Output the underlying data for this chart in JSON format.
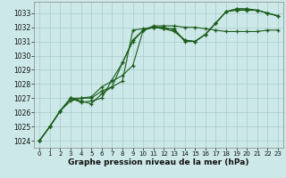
{
  "background_color": "#cce8e8",
  "plot_bg_color": "#cce8e8",
  "grid_color": "#aacccc",
  "line_color": "#1a5c1a",
  "xlim": [
    -0.5,
    23.5
  ],
  "ylim": [
    1023.5,
    1033.8
  ],
  "yticks": [
    1024,
    1025,
    1026,
    1027,
    1028,
    1029,
    1030,
    1031,
    1032,
    1033
  ],
  "xticks": [
    0,
    1,
    2,
    3,
    4,
    5,
    6,
    7,
    8,
    9,
    10,
    11,
    12,
    13,
    14,
    15,
    16,
    17,
    18,
    19,
    20,
    21,
    22,
    23
  ],
  "xlabel": "Graphe pression niveau de la mer (hPa)",
  "series": [
    [
      1024.0,
      1025.0,
      1026.1,
      1026.8,
      1027.0,
      1027.0,
      1027.5,
      1027.8,
      1028.2,
      1031.8,
      1031.9,
      1032.0,
      1031.9,
      1031.7,
      1031.1,
      1031.0,
      1031.5,
      1032.3,
      1033.1,
      1033.2,
      1033.2,
      1033.2,
      1033.0,
      1032.8
    ],
    [
      1024.0,
      1025.0,
      1026.1,
      1027.0,
      1027.0,
      1027.1,
      1027.8,
      1028.2,
      1028.6,
      1029.3,
      1031.8,
      1032.0,
      1032.0,
      1031.8,
      1031.1,
      1031.0,
      1031.5,
      1032.3,
      1033.1,
      1033.3,
      1033.3,
      1033.2,
      1033.0,
      1032.8
    ],
    [
      1024.0,
      1025.0,
      1026.1,
      1027.0,
      1026.7,
      1026.8,
      1027.0,
      1028.3,
      1029.5,
      1031.1,
      1031.8,
      1032.0,
      1031.9,
      1031.9,
      1031.0,
      1031.0,
      1031.5,
      1032.3,
      1033.1,
      1033.3,
      1033.3,
      1033.2,
      1033.0,
      1032.8
    ],
    [
      1024.0,
      1025.0,
      1026.1,
      1027.0,
      1026.8,
      1026.6,
      1027.3,
      1027.8,
      1029.5,
      1031.0,
      1031.8,
      1032.1,
      1032.1,
      1032.1,
      1032.0,
      1032.0,
      1031.9,
      1031.8,
      1031.7,
      1031.7,
      1031.7,
      1031.7,
      1031.8,
      1031.8
    ]
  ]
}
